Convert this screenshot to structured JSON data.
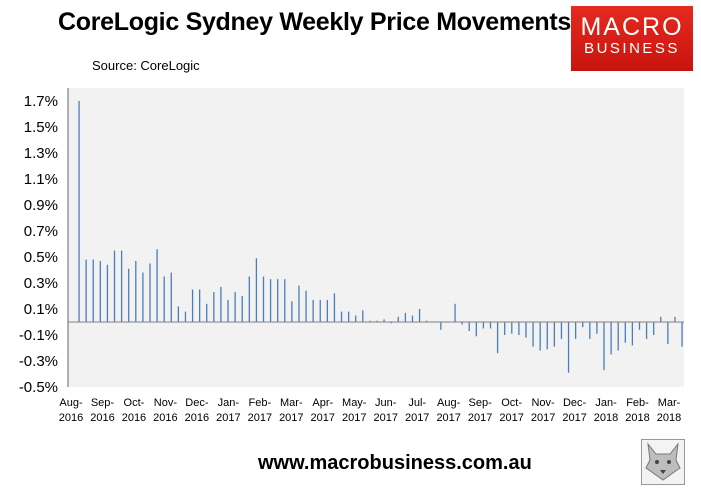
{
  "header": {
    "title": "CoreLogic Sydney Weekly Price Movements",
    "source": "Source: CoreLogic"
  },
  "logo": {
    "line1": "MACRO",
    "line2": "BUSINESS"
  },
  "footer": {
    "url": "www.macrobusiness.com.au"
  },
  "chart_data": {
    "type": "bar",
    "title": "CoreLogic Sydney Weekly Price Movements",
    "xlabel": "",
    "ylabel": "",
    "ylim": [
      -0.5,
      1.8
    ],
    "y_ticks": [
      "1.7%",
      "1.5%",
      "1.3%",
      "1.1%",
      "0.9%",
      "0.7%",
      "0.5%",
      "0.3%",
      "0.1%",
      "-0.1%",
      "-0.3%",
      "-0.5%"
    ],
    "y_tick_values": [
      1.7,
      1.5,
      1.3,
      1.1,
      0.9,
      0.7,
      0.5,
      0.3,
      0.1,
      -0.1,
      -0.3,
      -0.5
    ],
    "x_ticks": [
      [
        "Aug-",
        "2016"
      ],
      [
        "Sep-",
        "2016"
      ],
      [
        "Oct-",
        "2016"
      ],
      [
        "Nov-",
        "2016"
      ],
      [
        "Dec-",
        "2016"
      ],
      [
        "Jan-",
        "2017"
      ],
      [
        "Feb-",
        "2017"
      ],
      [
        "Mar-",
        "2017"
      ],
      [
        "Apr-",
        "2017"
      ],
      [
        "May-",
        "2017"
      ],
      [
        "Jun-",
        "2017"
      ],
      [
        "Jul-",
        "2017"
      ],
      [
        "Aug-",
        "2017"
      ],
      [
        "Sep-",
        "2017"
      ],
      [
        "Oct-",
        "2017"
      ],
      [
        "Nov-",
        "2017"
      ],
      [
        "Dec-",
        "2017"
      ],
      [
        "Jan-",
        "2018"
      ],
      [
        "Feb-",
        "2018"
      ],
      [
        "Mar-",
        "2018"
      ]
    ],
    "grid": false,
    "bar_color": "#4a7ebb",
    "plot_background": "#f2f2f2",
    "values": [
      1.7,
      0.48,
      0.48,
      0.47,
      0.44,
      0.55,
      0.55,
      0.41,
      0.47,
      0.38,
      0.45,
      0.56,
      0.35,
      0.38,
      0.12,
      0.08,
      0.25,
      0.25,
      0.14,
      0.23,
      0.27,
      0.17,
      0.23,
      0.2,
      0.35,
      0.49,
      0.35,
      0.33,
      0.33,
      0.33,
      0.16,
      0.28,
      0.24,
      0.17,
      0.17,
      0.17,
      0.22,
      0.08,
      0.08,
      0.05,
      0.09,
      0.01,
      0.01,
      0.02,
      -0.01,
      0.04,
      0.07,
      0.05,
      0.1,
      0.01,
      0.0,
      -0.06,
      0.0,
      0.14,
      -0.02,
      -0.07,
      -0.11,
      -0.05,
      -0.05,
      -0.24,
      -0.1,
      -0.09,
      -0.1,
      -0.12,
      -0.19,
      -0.22,
      -0.21,
      -0.19,
      -0.13,
      -0.39,
      -0.13,
      -0.04,
      -0.13,
      -0.09,
      -0.37,
      -0.25,
      -0.22,
      -0.16,
      -0.18,
      -0.06,
      -0.13,
      -0.1,
      0.04,
      -0.17,
      0.04,
      -0.19
    ]
  }
}
